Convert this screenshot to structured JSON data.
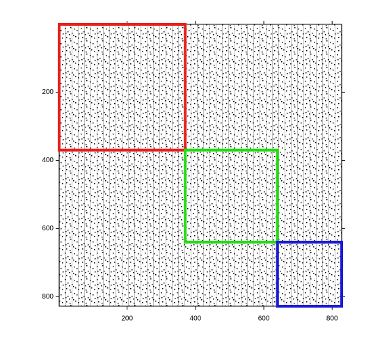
{
  "chart_data": {
    "type": "spy",
    "xlim": [
      1,
      828
    ],
    "ylim": [
      1,
      828
    ],
    "y_inverted": true,
    "xticks": [
      200,
      400,
      600,
      800
    ],
    "yticks": [
      200,
      400,
      600,
      800
    ],
    "regions": [
      {
        "start": 1,
        "end": 370,
        "color": "#e8201c"
      },
      {
        "start": 370,
        "end": 640,
        "color": "#22dd11"
      },
      {
        "start": 640,
        "end": 828,
        "color": "#1a1ad6"
      }
    ]
  }
}
